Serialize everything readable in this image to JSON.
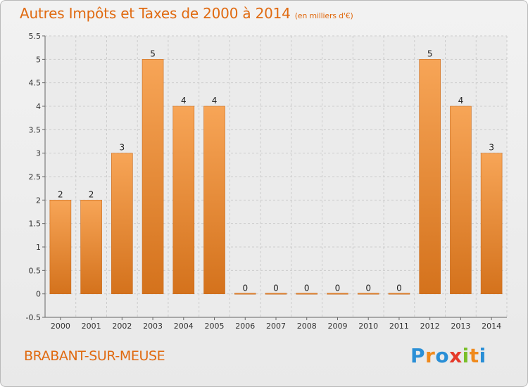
{
  "title": "Autres Impôts et Taxes de 2000 à 2014",
  "unit_label": "(en milliers d'€)",
  "commune": "BRABANT-SUR-MEUSE",
  "logo": {
    "text": "Proxiti",
    "letters": [
      {
        "ch": "P",
        "color": "#2a8fd6"
      },
      {
        "ch": "r",
        "color": "#f08a1c"
      },
      {
        "ch": "o",
        "color": "#2a8fd6"
      },
      {
        "ch": "x",
        "color": "#e53a2a"
      },
      {
        "ch": "i",
        "color": "#7abf2a"
      },
      {
        "ch": "t",
        "color": "#f08a1c"
      },
      {
        "ch": "i",
        "color": "#2a8fd6"
      }
    ]
  },
  "colors": {
    "title": "#e06a10",
    "bar_light": "#f7a557",
    "bar_dark": "#d4721c",
    "grid": "#cccccc",
    "axis": "#666666",
    "text": "#222222"
  },
  "chart_data": {
    "type": "bar",
    "title": "Autres Impôts et Taxes de 2000 à 2014",
    "categories": [
      "2000",
      "2001",
      "2002",
      "2003",
      "2004",
      "2005",
      "2006",
      "2007",
      "2008",
      "2009",
      "2010",
      "2011",
      "2012",
      "2013",
      "2014"
    ],
    "values": [
      2,
      2,
      3,
      5,
      4,
      4,
      0,
      0,
      0,
      0,
      0,
      0,
      5,
      4,
      3
    ],
    "data_labels": [
      "2",
      "2",
      "3",
      "5",
      "4",
      "4",
      "0",
      "0",
      "0",
      "0",
      "0",
      "0",
      "5",
      "4",
      "3"
    ],
    "yticks": [
      "-0.5",
      "0",
      "0.5",
      "1",
      "1.5",
      "2",
      "2.5",
      "3",
      "3.5",
      "4",
      "4.5",
      "5",
      "5.5"
    ],
    "ylim": [
      -0.5,
      5.5
    ],
    "grid": true,
    "legend": "none"
  }
}
